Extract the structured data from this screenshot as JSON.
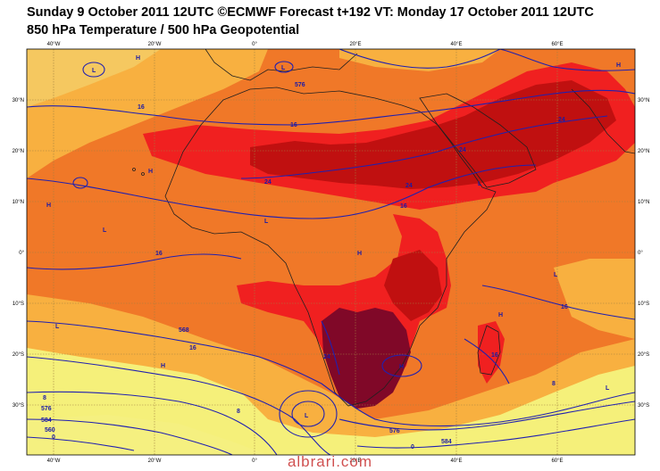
{
  "title_line1": "Sunday 9 October 2011 12UTC ©ECMWF Forecast t+192 VT: Monday 17 October 2011 12UTC",
  "title_line2": "850 hPa Temperature / 500 hPa Geopotential",
  "watermark": "albrari.com",
  "lon_labels": [
    "40°W",
    "20°W",
    "0°",
    "20°E",
    "40°E",
    "60°E"
  ],
  "lat_labels": [
    "30°N",
    "20°N",
    "10°N",
    "0°",
    "10°S",
    "20°S",
    "30°S"
  ],
  "pressure_centers": [
    "L",
    "H",
    "H",
    "L",
    "H",
    "H",
    "L",
    "L",
    "H",
    "H",
    "L",
    "L",
    "L",
    "H",
    "H",
    "L",
    "L"
  ],
  "contour_labels": [
    "16",
    "16",
    "24",
    "24",
    "24",
    "24",
    "16",
    "16",
    "16",
    "16",
    "24",
    "16",
    "8",
    "8",
    "8",
    "0",
    "0",
    "576",
    "576",
    "576",
    "584",
    "584",
    "568",
    "560"
  ],
  "colors": {
    "yellow": "#f5f07a",
    "light_orange": "#f8b040",
    "orange": "#f07828",
    "red": "#f02020",
    "dark_red": "#c01010",
    "maroon": "#800828",
    "contour": "#2020b0",
    "coast": "#202020",
    "grid": "#a08040"
  }
}
